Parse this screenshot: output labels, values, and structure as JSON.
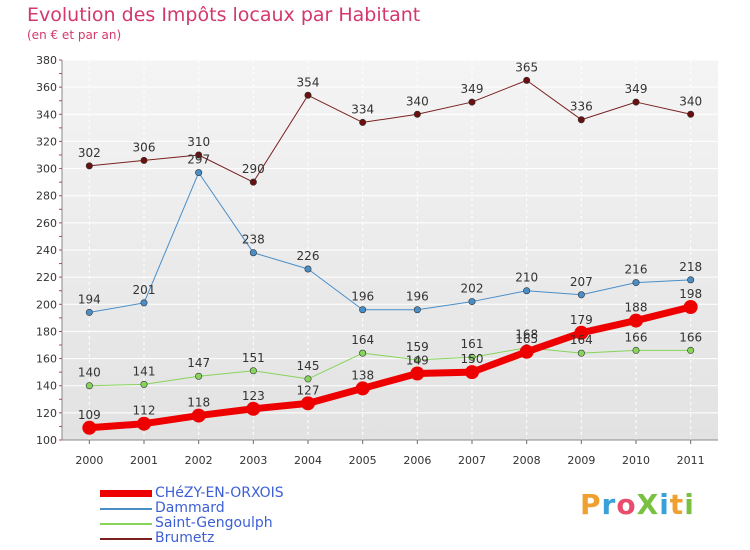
{
  "title": "Evolution des Impôts locaux par Habitant",
  "subtitle": "(en € et par an)",
  "brand": {
    "text": "ProXiti",
    "colors": [
      "#f0a030",
      "#3aa0d8",
      "#e84d6d",
      "#7ac143",
      "#3aa0d8",
      "#f0a030",
      "#7ac143"
    ]
  },
  "chart_data": {
    "type": "line",
    "x": [
      "2000",
      "2001",
      "2002",
      "2003",
      "2004",
      "2005",
      "2006",
      "2007",
      "2008",
      "2009",
      "2010",
      "2011"
    ],
    "ylim": [
      100,
      380
    ],
    "yticks": [
      100,
      120,
      140,
      160,
      180,
      200,
      220,
      240,
      260,
      280,
      300,
      320,
      340,
      360,
      380
    ],
    "grid": true,
    "legend_position": "bottom-left",
    "series": [
      {
        "name": "CHéZY-EN-ORXOIS",
        "color": "#ee0000",
        "values": [
          109,
          112,
          118,
          123,
          127,
          138,
          149,
          150,
          165,
          179,
          188,
          198
        ],
        "labels": [
          "109",
          "112",
          "118",
          "123",
          "127",
          "138",
          "149",
          "150",
          "165",
          "179",
          "188",
          "198"
        ]
      },
      {
        "name": "Dammard",
        "color": "#4a8ec8",
        "values": [
          194,
          201,
          297,
          238,
          226,
          196,
          196,
          202,
          210,
          207,
          216,
          218
        ],
        "labels": [
          "194",
          "201",
          "297",
          "238",
          "226",
          "196",
          "196",
          "202",
          "210",
          "207",
          "216",
          "218"
        ]
      },
      {
        "name": "Saint-Gengoulph",
        "color": "#86d45a",
        "values": [
          140,
          141,
          147,
          151,
          145,
          164,
          159,
          161,
          168,
          164,
          166,
          166
        ],
        "labels": [
          "140",
          "141",
          "147",
          "151",
          "145",
          "164",
          "159",
          "161",
          "168",
          "164",
          "166",
          "166"
        ]
      },
      {
        "name": "Brumetz",
        "color": "#7a2020",
        "values": [
          302,
          306,
          310,
          290,
          354,
          334,
          340,
          349,
          365,
          336,
          349,
          340
        ],
        "labels": [
          "302",
          "306",
          "310",
          "290",
          "354",
          "334",
          "340",
          "349",
          "365",
          "336",
          "349",
          "340"
        ]
      }
    ]
  }
}
